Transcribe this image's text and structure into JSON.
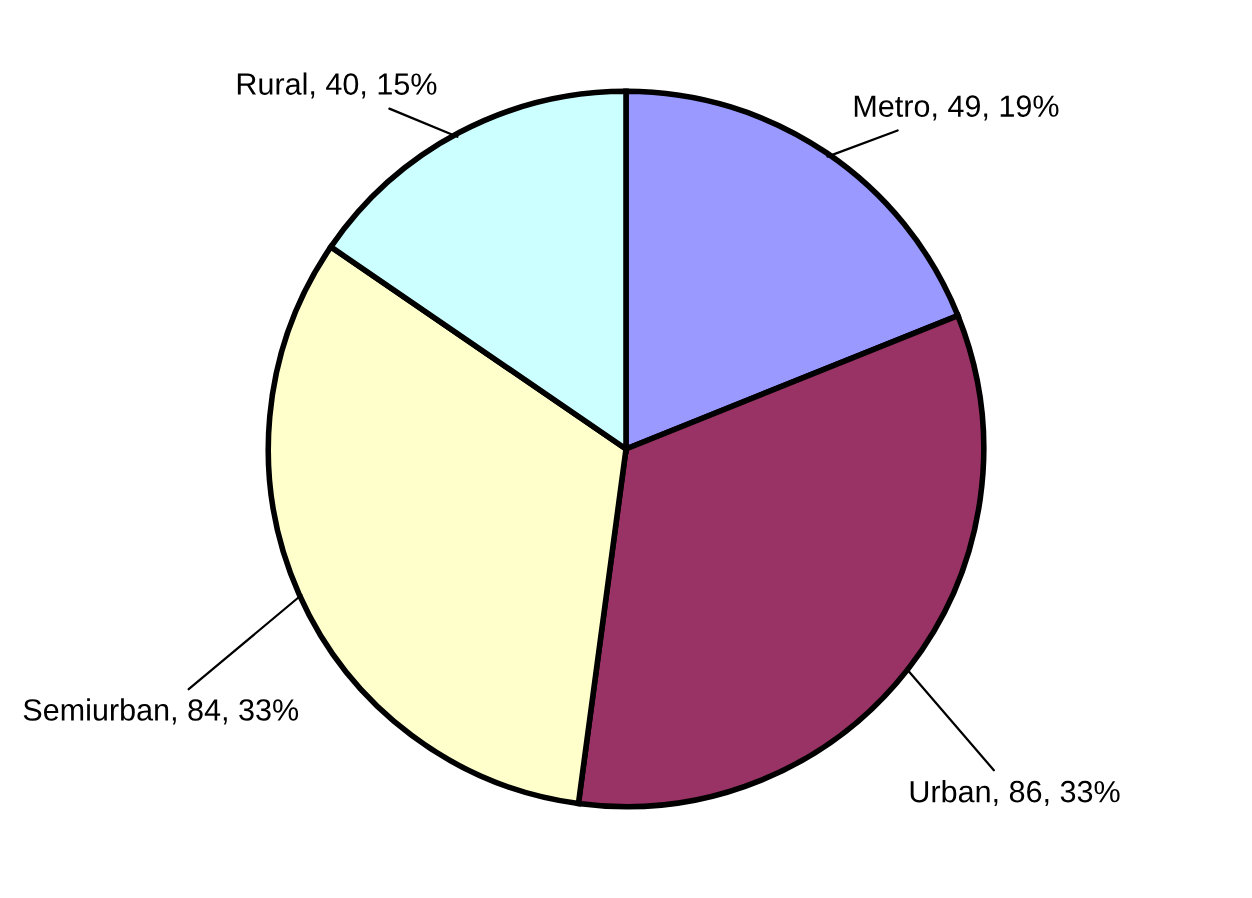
{
  "chart_data": {
    "type": "pie",
    "categories": [
      "Metro",
      "Urban",
      "Semiurban",
      "Rural"
    ],
    "values": [
      49,
      86,
      84,
      40
    ],
    "value_labels": [
      "49, 19%",
      "86, 33%",
      "84, 33%",
      "40, 15%"
    ],
    "colors": [
      "#9999ff",
      "#993366",
      "#ffffcc",
      "#ccffff"
    ]
  }
}
